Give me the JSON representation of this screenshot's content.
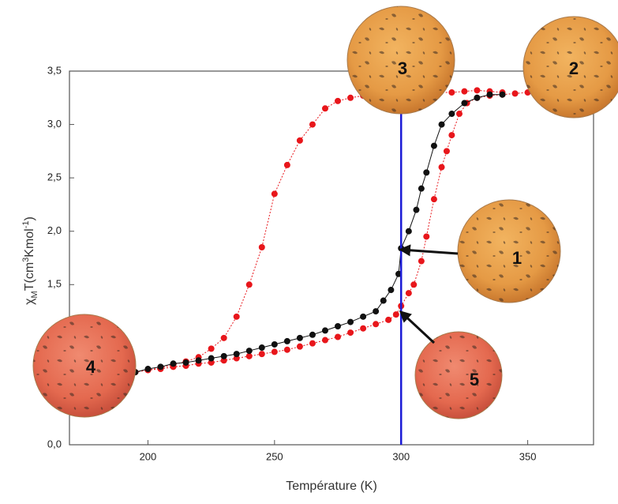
{
  "chart_data": {
    "type": "scatter",
    "xlabel": "Température (K)",
    "ylabel": [
      "χ",
      "M",
      "T(cm",
      "3",
      "Kmol",
      "-1",
      ")"
    ],
    "xlim": [
      169,
      376
    ],
    "ylim": [
      0,
      3.5
    ],
    "xticks": [
      200,
      250,
      300,
      350
    ],
    "yticks": [
      {
        "value": 0,
        "label": "0,0"
      },
      {
        "value": 0.5,
        "label": "0,5"
      },
      {
        "value": 1,
        "label": "1,0"
      },
      {
        "value": 1.5,
        "label": "1,5"
      },
      {
        "value": 2,
        "label": "2,0"
      },
      {
        "value": 2.5,
        "label": "2,5"
      },
      {
        "value": 3,
        "label": "3,0"
      },
      {
        "value": 3.5,
        "label": "3,5"
      }
    ],
    "vline": {
      "value": 300,
      "color": "#1a1ad6"
    },
    "series": [
      {
        "color": "#e8161b",
        "x": [
          195,
          200,
          205,
          210,
          215,
          220,
          225,
          230,
          235,
          240,
          245,
          250,
          255,
          260,
          265,
          270,
          275,
          280,
          285,
          290,
          295,
          300,
          305,
          310,
          315,
          320,
          325,
          330,
          335,
          340
        ],
        "values": [
          0.68,
          0.7,
          0.72,
          0.75,
          0.78,
          0.82,
          0.9,
          1.0,
          1.2,
          1.5,
          1.85,
          2.35,
          2.62,
          2.85,
          3.0,
          3.15,
          3.22,
          3.25,
          3.27,
          3.28,
          3.29,
          3.3,
          3.3,
          3.3,
          3.3,
          3.3,
          3.31,
          3.32,
          3.31,
          3.3
        ]
      },
      {
        "color": "#e8161b",
        "x": [
          195,
          200,
          205,
          210,
          215,
          220,
          225,
          230,
          235,
          240,
          245,
          250,
          255,
          260,
          265,
          270,
          275,
          280,
          285,
          290,
          295,
          298,
          300,
          303,
          305,
          308,
          310,
          313,
          316,
          318,
          320,
          323,
          326,
          330,
          335,
          340,
          345,
          350
        ],
        "values": [
          0.68,
          0.7,
          0.71,
          0.73,
          0.74,
          0.76,
          0.77,
          0.79,
          0.81,
          0.83,
          0.85,
          0.87,
          0.89,
          0.92,
          0.95,
          0.98,
          1.01,
          1.05,
          1.09,
          1.13,
          1.17,
          1.22,
          1.3,
          1.42,
          1.5,
          1.72,
          1.95,
          2.3,
          2.6,
          2.75,
          2.9,
          3.1,
          3.2,
          3.25,
          3.27,
          3.28,
          3.29,
          3.3
        ]
      },
      {
        "color": "#111111",
        "x": [
          195,
          200,
          205,
          210,
          215,
          220,
          225,
          230,
          235,
          240,
          245,
          250,
          255,
          260,
          265,
          270,
          275,
          280,
          285,
          290,
          293,
          296,
          299,
          300,
          303,
          306,
          308,
          310,
          313,
          316,
          320,
          325,
          330,
          335,
          340
        ],
        "values": [
          0.68,
          0.71,
          0.73,
          0.76,
          0.77,
          0.79,
          0.81,
          0.83,
          0.85,
          0.88,
          0.91,
          0.94,
          0.97,
          1.0,
          1.03,
          1.07,
          1.11,
          1.15,
          1.2,
          1.25,
          1.35,
          1.45,
          1.6,
          1.84,
          2.0,
          2.2,
          2.4,
          2.55,
          2.8,
          3.0,
          3.1,
          3.2,
          3.25,
          3.28,
          3.28
        ]
      }
    ],
    "annotations": [
      "1",
      "2",
      "3",
      "4",
      "5"
    ]
  }
}
